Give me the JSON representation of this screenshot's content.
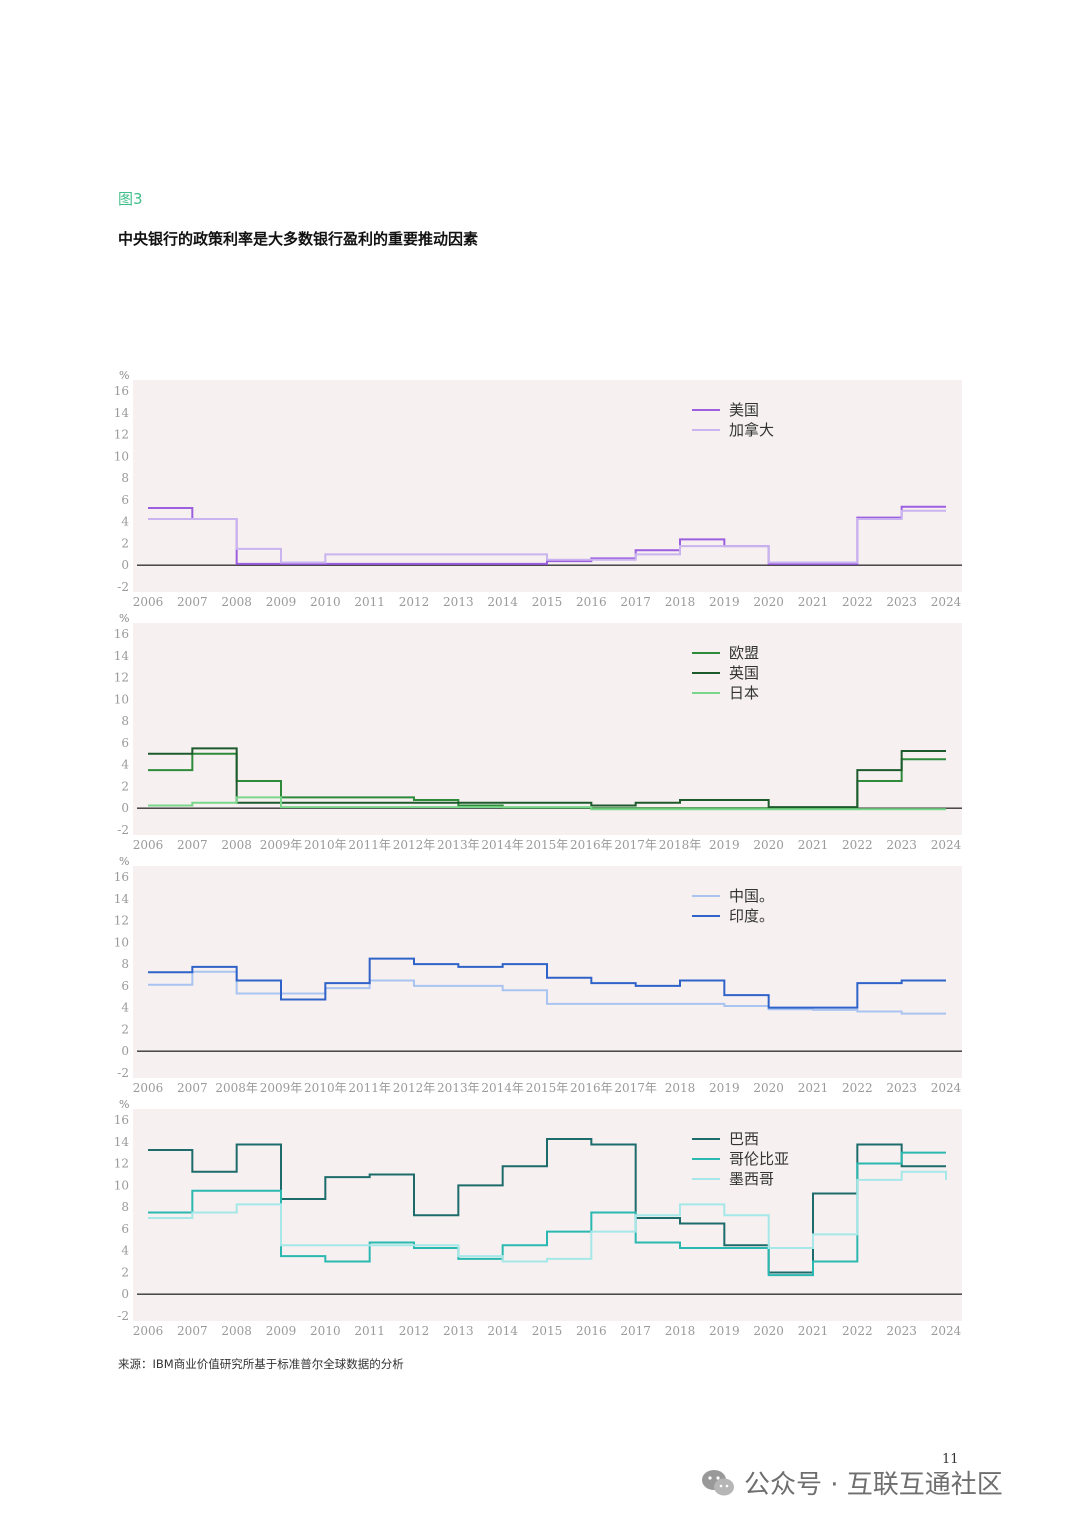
{
  "figure_label": "图3",
  "title": "中央银行的政策利率是大多数银行盈利的重要推动因素",
  "source": "来源：IBM商业价值研究所基于标准普尔全球数据的分析",
  "page_number": "11",
  "watermark": "公众号 · 互联互通社区",
  "chart_data": [
    {
      "type": "line",
      "step": true,
      "ylabel": "%",
      "ylim": [
        -2,
        16
      ],
      "yticks": [
        "16",
        "14",
        "12",
        "10",
        "8",
        "6",
        "4",
        "2",
        "0",
        "-2"
      ],
      "x_ticks": [
        "2006",
        "2007",
        "2008",
        "2009",
        "2010",
        "2011",
        "2012",
        "2013",
        "2014",
        "2015",
        "2016",
        "2017",
        "2018",
        "2019",
        "2020",
        "2021",
        "2022",
        "2023",
        "2024"
      ],
      "grid": false,
      "legend_position": "top-right",
      "series": [
        {
          "name": "美国",
          "color": "#9b5fe0",
          "values": [
            5.25,
            4.25,
            0.125,
            0.125,
            0.125,
            0.125,
            0.125,
            0.125,
            0.125,
            0.375,
            0.625,
            1.375,
            2.375,
            1.75,
            0.125,
            0.125,
            4.375,
            5.375,
            5.375
          ]
        },
        {
          "name": "加拿大",
          "color": "#c9b4ef",
          "values": [
            4.25,
            4.25,
            1.5,
            0.25,
            1.0,
            1.0,
            1.0,
            1.0,
            1.0,
            0.5,
            0.5,
            1.0,
            1.75,
            1.75,
            0.25,
            0.25,
            4.25,
            5.0,
            5.0
          ]
        }
      ]
    },
    {
      "type": "line",
      "step": true,
      "ylabel": "%",
      "ylim": [
        -2,
        16
      ],
      "yticks": [
        "16",
        "14",
        "12",
        "10",
        "8",
        "6",
        "4",
        "2",
        "0",
        "-2"
      ],
      "x_ticks": [
        "2006",
        "2007",
        "2008",
        "2009年",
        "2010年",
        "2011年",
        "2012年",
        "2013年",
        "2014年",
        "2015年",
        "2016年",
        "2017年",
        "2018年",
        "2019",
        "2020",
        "2021",
        "2022",
        "2023",
        "2024"
      ],
      "grid": false,
      "legend_position": "top-right",
      "series": [
        {
          "name": "欧盟",
          "color": "#2e8b3a",
          "values": [
            3.5,
            5.0,
            2.5,
            1.0,
            1.0,
            1.0,
            0.75,
            0.25,
            0.05,
            0.05,
            0.0,
            0.0,
            0.0,
            0.0,
            0.0,
            0.0,
            2.5,
            4.5,
            4.5
          ]
        },
        {
          "name": "英国",
          "color": "#1d5a2c",
          "values": [
            5.0,
            5.5,
            0.5,
            0.5,
            0.5,
            0.5,
            0.5,
            0.5,
            0.5,
            0.5,
            0.25,
            0.5,
            0.75,
            0.75,
            0.1,
            0.1,
            3.5,
            5.25,
            5.25
          ]
        },
        {
          "name": "日本",
          "color": "#79d68a",
          "values": [
            0.25,
            0.5,
            1.0,
            0.1,
            0.1,
            0.1,
            0.1,
            0.1,
            0.1,
            0.1,
            -0.1,
            -0.1,
            -0.1,
            -0.1,
            -0.1,
            -0.1,
            -0.1,
            -0.1,
            -0.1
          ]
        }
      ]
    },
    {
      "type": "line",
      "step": true,
      "ylabel": "%",
      "ylim": [
        -2,
        16
      ],
      "yticks": [
        "16",
        "14",
        "12",
        "10",
        "8",
        "6",
        "4",
        "2",
        "0",
        "-2"
      ],
      "x_ticks": [
        "2006",
        "2007",
        "2008年",
        "2009年",
        "2010年",
        "2011年",
        "2012年",
        "2013年",
        "2014年",
        "2015年",
        "2016年",
        "2017年",
        "2018",
        "2019",
        "2020",
        "2021",
        "2022",
        "2023",
        "2024"
      ],
      "grid": false,
      "legend_position": "top-right",
      "series": [
        {
          "name": "中国。",
          "color": "#a9c4f0",
          "values": [
            6.1,
            7.3,
            5.3,
            5.3,
            5.8,
            6.5,
            6.0,
            6.0,
            5.6,
            4.35,
            4.35,
            4.35,
            4.35,
            4.15,
            3.85,
            3.8,
            3.65,
            3.45,
            3.45
          ]
        },
        {
          "name": "印度。",
          "color": "#2f63c9",
          "values": [
            7.25,
            7.75,
            6.5,
            4.75,
            6.25,
            8.5,
            8.0,
            7.75,
            8.0,
            6.75,
            6.25,
            6.0,
            6.5,
            5.15,
            4.0,
            4.0,
            6.25,
            6.5,
            6.5
          ]
        }
      ]
    },
    {
      "type": "line",
      "step": true,
      "ylabel": "%",
      "ylim": [
        -2,
        16
      ],
      "yticks": [
        "16",
        "14",
        "12",
        "10",
        "8",
        "6",
        "4",
        "2",
        "0",
        "-2"
      ],
      "x_ticks": [
        "2006",
        "2007",
        "2008",
        "2009",
        "2010",
        "2011",
        "2012",
        "2013",
        "2014",
        "2015",
        "2016",
        "2017",
        "2018",
        "2019",
        "2020",
        "2021",
        "2022",
        "2023",
        "2024"
      ],
      "grid": false,
      "legend_position": "top-right",
      "series": [
        {
          "name": "巴西",
          "color": "#1d6b6b",
          "values": [
            13.25,
            11.25,
            13.75,
            8.75,
            10.75,
            11.0,
            7.25,
            10.0,
            11.75,
            14.25,
            13.75,
            7.0,
            6.5,
            4.5,
            2.0,
            9.25,
            13.75,
            11.75,
            11.75
          ]
        },
        {
          "name": "哥伦比亚",
          "color": "#2bb8b0",
          "values": [
            7.5,
            9.5,
            9.5,
            3.5,
            3.0,
            4.75,
            4.25,
            3.25,
            4.5,
            5.75,
            7.5,
            4.75,
            4.25,
            4.25,
            1.75,
            3.0,
            12.0,
            13.0,
            13.0
          ]
        },
        {
          "name": "墨西哥",
          "color": "#a6e8e8",
          "values": [
            7.0,
            7.5,
            8.25,
            4.5,
            4.5,
            4.5,
            4.5,
            3.5,
            3.0,
            3.25,
            5.75,
            7.25,
            8.25,
            7.25,
            4.25,
            5.5,
            10.5,
            11.25,
            10.5
          ]
        }
      ]
    }
  ]
}
